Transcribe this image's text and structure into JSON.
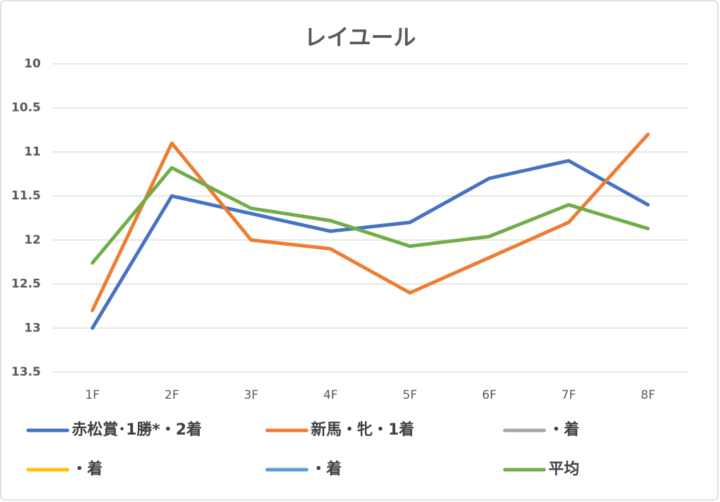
{
  "chart_data": {
    "type": "line",
    "title": "レイユール",
    "categories": [
      "1F",
      "2F",
      "3F",
      "4F",
      "5F",
      "6F",
      "7F",
      "8F"
    ],
    "series": [
      {
        "name": "赤松賞･1勝*・2着",
        "color": "#4472c4",
        "values": [
          13.0,
          11.5,
          11.7,
          11.9,
          11.8,
          11.3,
          11.1,
          11.6
        ]
      },
      {
        "name": "新馬・牝・1着",
        "color": "#ed7d31",
        "values": [
          12.8,
          10.9,
          12.0,
          12.1,
          12.6,
          12.2,
          11.8,
          10.8
        ]
      },
      {
        "name": "・着",
        "color": "#a5a5a5",
        "values": [
          null,
          null,
          null,
          null,
          null,
          null,
          null,
          null
        ]
      },
      {
        "name": "・着",
        "color": "#ffc000",
        "values": [
          null,
          null,
          null,
          null,
          null,
          null,
          null,
          null
        ]
      },
      {
        "name": "・着",
        "color": "#5b9bd5",
        "values": [
          null,
          null,
          null,
          null,
          null,
          null,
          null,
          null
        ]
      },
      {
        "name": "平均",
        "color": "#70ad47",
        "values": [
          12.26,
          11.18,
          11.64,
          11.78,
          12.07,
          11.96,
          11.6,
          11.87
        ]
      }
    ],
    "ylim": [
      10,
      13.5
    ],
    "y_reversed": true,
    "yticks": [
      10,
      10.5,
      11,
      11.5,
      12,
      12.5,
      13,
      13.5
    ],
    "grid": true,
    "legend": "bottom"
  }
}
